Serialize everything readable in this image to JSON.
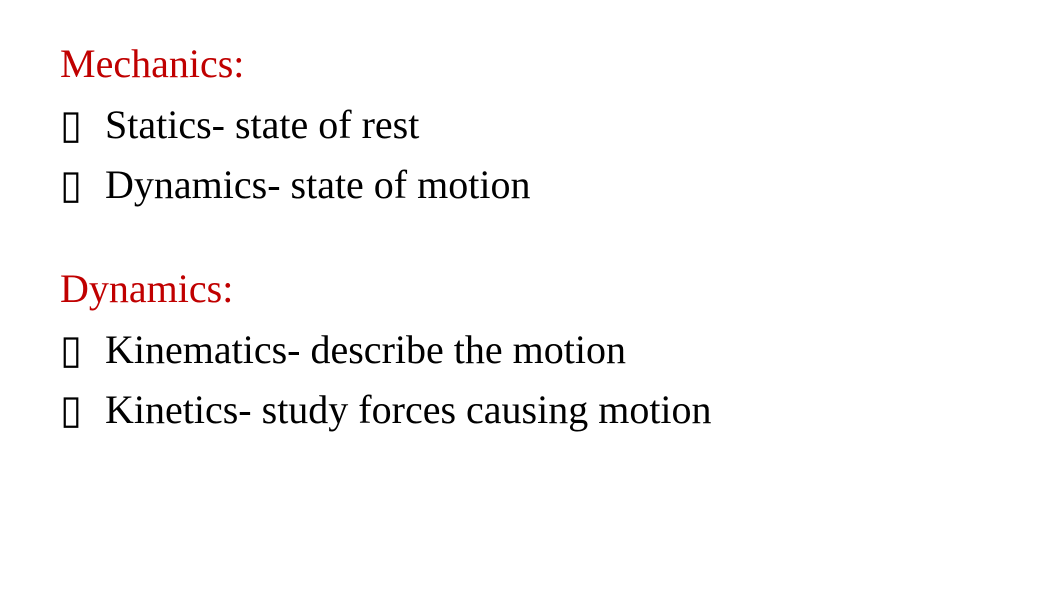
{
  "sections": [
    {
      "heading": "Mechanics:",
      "items": [
        "Statics- state of rest",
        "Dynamics- state of motion"
      ]
    },
    {
      "heading": "Dynamics:",
      "items": [
        "Kinematics- describe the motion",
        "Kinetics- study forces causing motion"
      ]
    }
  ],
  "styling": {
    "heading_color": "#c00000",
    "text_color": "#000000",
    "background_color": "#ffffff",
    "font_family": "Times New Roman, serif",
    "heading_fontsize": 40,
    "item_fontsize": 40,
    "bullet_char": "▯"
  }
}
